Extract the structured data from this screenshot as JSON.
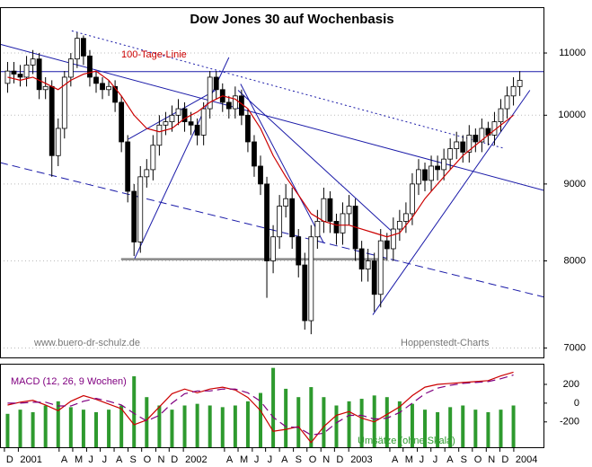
{
  "chart_data": [
    {
      "type": "candlestick",
      "title": "Dow Jones 30 auf Wochenbasis",
      "log_scale": true,
      "grid": true,
      "xlim": [
        -1.4,
        170.5
      ],
      "ylim": [
        6900,
        11800
      ],
      "yticks": [
        7000,
        8000,
        9000,
        10000,
        11000
      ],
      "x": [
        1,
        3,
        5,
        7,
        9,
        11,
        13,
        15,
        17,
        19,
        21,
        23,
        25,
        27,
        29,
        31,
        33,
        35,
        37,
        39,
        41,
        43,
        45,
        47,
        49,
        51,
        53,
        55,
        57,
        59,
        61,
        63,
        65,
        67,
        69,
        71,
        73,
        75,
        77,
        79,
        81,
        83,
        85,
        87,
        89,
        91,
        93,
        95,
        97,
        99,
        101,
        103,
        105,
        107,
        109,
        111,
        113,
        115,
        117,
        119,
        121,
        123,
        125,
        127,
        129,
        131,
        133,
        135,
        137,
        139,
        141,
        143,
        145,
        147,
        149,
        151,
        153,
        155,
        157,
        159,
        161,
        163
      ],
      "open": [
        10500,
        10700,
        10650,
        10600,
        10800,
        10900,
        10400,
        10450,
        9400,
        9800,
        10600,
        10900,
        11250,
        10950,
        10600,
        10500,
        10400,
        10450,
        10200,
        9600,
        8900,
        8235,
        9100,
        9200,
        9550,
        9850,
        9900,
        10000,
        10100,
        9900,
        9850,
        9700,
        10100,
        10600,
        10400,
        10200,
        10100,
        10300,
        10000,
        9600,
        9250,
        9000,
        8000,
        8300,
        8700,
        8800,
        8300,
        7950,
        7300,
        8300,
        8500,
        8800,
        8500,
        8350,
        8600,
        8700,
        8150,
        7900,
        8000,
        7600,
        8250,
        8150,
        8400,
        8500,
        8600,
        9000,
        9200,
        9050,
        9250,
        9200,
        9350,
        9500,
        9600,
        9450,
        9700,
        9600,
        9800,
        9700,
        9900,
        10100,
        10300,
        10450
      ],
      "high": [
        10850,
        10850,
        10800,
        10950,
        11050,
        11000,
        10600,
        10550,
        9950,
        10700,
        11000,
        11350,
        11300,
        11050,
        10700,
        10600,
        10550,
        10550,
        10300,
        9700,
        9000,
        9250,
        9350,
        9700,
        10000,
        10050,
        10150,
        10250,
        10200,
        10050,
        9950,
        10200,
        10700,
        10700,
        10500,
        10300,
        10450,
        10400,
        10100,
        9700,
        9400,
        9100,
        8450,
        8850,
        9000,
        8950,
        8400,
        8100,
        8450,
        8650,
        8950,
        8900,
        8600,
        8750,
        8850,
        8800,
        8250,
        8150,
        8100,
        8400,
        8350,
        8550,
        8650,
        8750,
        9150,
        9350,
        9300,
        9400,
        9400,
        9500,
        9650,
        9750,
        9700,
        9850,
        9800,
        9950,
        9900,
        10050,
        10250,
        10450,
        10600,
        10700
      ],
      "low": [
        10350,
        10500,
        10450,
        10450,
        10650,
        10250,
        10250,
        9100,
        9250,
        9650,
        10450,
        10750,
        10800,
        10450,
        10350,
        10250,
        10300,
        10050,
        9450,
        8750,
        8060,
        8100,
        8950,
        9050,
        9400,
        9700,
        9750,
        9850,
        9750,
        9700,
        9550,
        9550,
        9950,
        10250,
        10050,
        9950,
        9950,
        9850,
        9450,
        9100,
        8850,
        7560,
        7850,
        8150,
        8550,
        8150,
        7800,
        7200,
        7150,
        8150,
        8350,
        8350,
        8200,
        8200,
        8450,
        8000,
        7750,
        7750,
        7400,
        7450,
        8000,
        8000,
        8250,
        8350,
        8450,
        8850,
        8900,
        8900,
        9050,
        9050,
        9200,
        9350,
        9300,
        9300,
        9450,
        9450,
        9550,
        9550,
        9750,
        9950,
        10150,
        10300
      ],
      "close": [
        10700,
        10650,
        10600,
        10800,
        10900,
        10400,
        10450,
        9400,
        9800,
        10600,
        10900,
        11250,
        10950,
        10600,
        10500,
        10400,
        10450,
        10200,
        9600,
        8900,
        8235,
        9100,
        9200,
        9550,
        9850,
        9900,
        10000,
        10100,
        9900,
        9850,
        9700,
        10100,
        10600,
        10400,
        10200,
        10100,
        10300,
        10000,
        9600,
        9250,
        9000,
        8000,
        8300,
        8700,
        8800,
        8300,
        7950,
        7300,
        8300,
        8500,
        8800,
        8500,
        8350,
        8600,
        8700,
        8150,
        7900,
        8000,
        7600,
        8250,
        8150,
        8400,
        8500,
        8600,
        9000,
        9200,
        9050,
        9250,
        9200,
        9350,
        9500,
        9600,
        9450,
        9700,
        9600,
        9800,
        9700,
        9900,
        10100,
        10300,
        10450,
        10550
      ],
      "series": [
        {
          "name": "100-Tage-Linie",
          "color": "#cc0000",
          "x": [
            1,
            5,
            9,
            13,
            17,
            21,
            25,
            29,
            33,
            37,
            41,
            45,
            49,
            53,
            57,
            61,
            65,
            69,
            73,
            77,
            81,
            85,
            89,
            93,
            97,
            101,
            105,
            109,
            113,
            117,
            121,
            125,
            129,
            133,
            137,
            141,
            145,
            149,
            153,
            157,
            161
          ],
          "values": [
            10600,
            10550,
            10600,
            10500,
            10400,
            10550,
            10650,
            10700,
            10550,
            10300,
            10000,
            9800,
            9750,
            9800,
            9950,
            10050,
            10200,
            10300,
            10250,
            10100,
            9800,
            9400,
            9100,
            8850,
            8600,
            8500,
            8450,
            8450,
            8400,
            8350,
            8300,
            8350,
            8550,
            8800,
            9000,
            9200,
            9400,
            9550,
            9700,
            9850,
            10000
          ]
        }
      ],
      "lines": [
        {
          "x": [
            -1.4,
            170.5
          ],
          "y": [
            11150,
            8914
          ],
          "color": "#1a1aa8",
          "dash": "solid"
        },
        {
          "x": [
            -1.4,
            170.5
          ],
          "y": [
            9300,
            7570
          ],
          "color": "#1a1aa8",
          "dash": "dashed"
        },
        {
          "x": [
            21.3,
            157.7
          ],
          "y": [
            11380,
            9510
          ],
          "color": "#1a1aa8",
          "dash": "dotted"
        },
        {
          "x": [
            -1.4,
            170.5
          ],
          "y": [
            10690,
            10690
          ],
          "color": "#1a1aa8",
          "dash": "solid"
        },
        {
          "x": [
            36.9,
            120.7
          ],
          "y": [
            8020,
            8020
          ],
          "color": "#888888",
          "dash": "thick"
        },
        {
          "x": [
            41.2,
            71
          ],
          "y": [
            8030,
            10925
          ],
          "color": "#1a1aa8",
          "dash": "solid"
        },
        {
          "x": [
            39.2,
            66.8
          ],
          "y": [
            9640,
            10390
          ],
          "color": "#1a1aa8",
          "dash": "solid"
        },
        {
          "x": [
            74.7,
            101
          ],
          "y": [
            10490,
            8220
          ],
          "color": "#1a1aa8",
          "dash": "solid"
        },
        {
          "x": [
            73.9,
            123.6
          ],
          "y": [
            10390,
            8330
          ],
          "color": "#1a1aa8",
          "dash": "solid"
        },
        {
          "x": [
            116.5,
            166.2
          ],
          "y": [
            7365,
            10390
          ],
          "color": "#1a1aa8",
          "dash": "solid"
        }
      ],
      "annotations": [
        "www.buero-dr-schulz.de",
        "Hoppenstedt-Charts"
      ]
    },
    {
      "type": "macd",
      "xlim": [
        -1.4,
        170.5
      ],
      "ylim": [
        -470,
        420
      ],
      "yticks": [
        200,
        0,
        -200
      ],
      "y2lim": [
        0,
        100
      ],
      "xticks": [
        {
          "value": 0,
          "label": "D"
        },
        {
          "value": 4.4,
          "label": "2001"
        },
        {
          "value": 17.3,
          "label": "A"
        },
        {
          "value": 21.6,
          "label": "M"
        },
        {
          "value": 26,
          "label": "J"
        },
        {
          "value": 30.3,
          "label": "J"
        },
        {
          "value": 34.7,
          "label": "A"
        },
        {
          "value": 39.1,
          "label": "S"
        },
        {
          "value": 43.4,
          "label": "O"
        },
        {
          "value": 47.9,
          "label": "N"
        },
        {
          "value": 52.1,
          "label": "D"
        },
        {
          "value": 56.6,
          "label": "2002"
        },
        {
          "value": 69.6,
          "label": "A"
        },
        {
          "value": 73.9,
          "label": "M"
        },
        {
          "value": 78.4,
          "label": "J"
        },
        {
          "value": 82.6,
          "label": "J"
        },
        {
          "value": 87,
          "label": "A"
        },
        {
          "value": 91.4,
          "label": "S"
        },
        {
          "value": 95.7,
          "label": "O"
        },
        {
          "value": 100.1,
          "label": "N"
        },
        {
          "value": 104.4,
          "label": "D"
        },
        {
          "value": 108.9,
          "label": "2003"
        },
        {
          "value": 121.9,
          "label": "A"
        },
        {
          "value": 126.1,
          "label": "M"
        },
        {
          "value": 130.6,
          "label": "J"
        },
        {
          "value": 134.9,
          "label": "J"
        },
        {
          "value": 139.3,
          "label": "A"
        },
        {
          "value": 143.7,
          "label": "S"
        },
        {
          "value": 148,
          "label": "O"
        },
        {
          "value": 152.4,
          "label": "N"
        },
        {
          "value": 156.7,
          "label": "D"
        },
        {
          "value": 161.1,
          "label": "2004"
        }
      ],
      "series": [
        {
          "name": "Umsätze (ohne Skala)",
          "color": "#2e9a2e",
          "axis": "y2",
          "x": [
            1,
            5,
            9,
            13,
            17,
            21,
            25,
            29,
            33,
            37,
            41,
            45,
            49,
            53,
            57,
            61,
            65,
            69,
            73,
            77,
            81,
            85,
            89,
            93,
            97,
            101,
            105,
            109,
            113,
            117,
            121,
            125,
            129,
            133,
            137,
            141,
            145,
            149,
            153,
            157,
            161
          ],
          "values": [
            40,
            45,
            42,
            50,
            55,
            48,
            45,
            42,
            45,
            50,
            85,
            60,
            50,
            45,
            50,
            52,
            50,
            48,
            50,
            55,
            65,
            95,
            70,
            60,
            72,
            60,
            50,
            55,
            58,
            62,
            60,
            55,
            52,
            45,
            42,
            48,
            50,
            45,
            42,
            45,
            50
          ]
        },
        {
          "name": "MACD (12, 26, 9 Wochen)",
          "color": "#cc0000",
          "dash": "solid",
          "x": [
            1,
            5,
            9,
            13,
            17,
            21,
            25,
            29,
            33,
            37,
            41,
            45,
            49,
            53,
            57,
            61,
            65,
            69,
            73,
            77,
            81,
            85,
            89,
            93,
            97,
            101,
            105,
            109,
            113,
            117,
            121,
            125,
            129,
            133,
            137,
            141,
            145,
            149,
            153,
            157,
            161
          ],
          "values": [
            -20,
            10,
            30,
            -20,
            -80,
            20,
            80,
            40,
            -10,
            -60,
            -230,
            -180,
            -40,
            100,
            150,
            110,
            150,
            170,
            140,
            60,
            -80,
            -300,
            -280,
            -250,
            -420,
            -250,
            -130,
            -90,
            -160,
            -200,
            -120,
            -40,
            80,
            170,
            200,
            210,
            220,
            230,
            240,
            290,
            330
          ]
        },
        {
          "color": "#800080",
          "dash": "dashed",
          "x": [
            1,
            5,
            9,
            13,
            17,
            21,
            25,
            29,
            33,
            37,
            41,
            45,
            49,
            53,
            57,
            61,
            65,
            69,
            73,
            77,
            81,
            85,
            89,
            93,
            97,
            101,
            105,
            109,
            113,
            117,
            121,
            125,
            129,
            133,
            137,
            141,
            145,
            149,
            153,
            157,
            161
          ],
          "values": [
            0,
            0,
            10,
            10,
            -30,
            -30,
            20,
            50,
            20,
            -20,
            -110,
            -190,
            -130,
            0,
            100,
            130,
            130,
            150,
            150,
            110,
            20,
            -150,
            -250,
            -260,
            -340,
            -320,
            -210,
            -130,
            -130,
            -170,
            -160,
            -100,
            0,
            100,
            160,
            190,
            210,
            220,
            230,
            260,
            300
          ]
        }
      ]
    }
  ]
}
